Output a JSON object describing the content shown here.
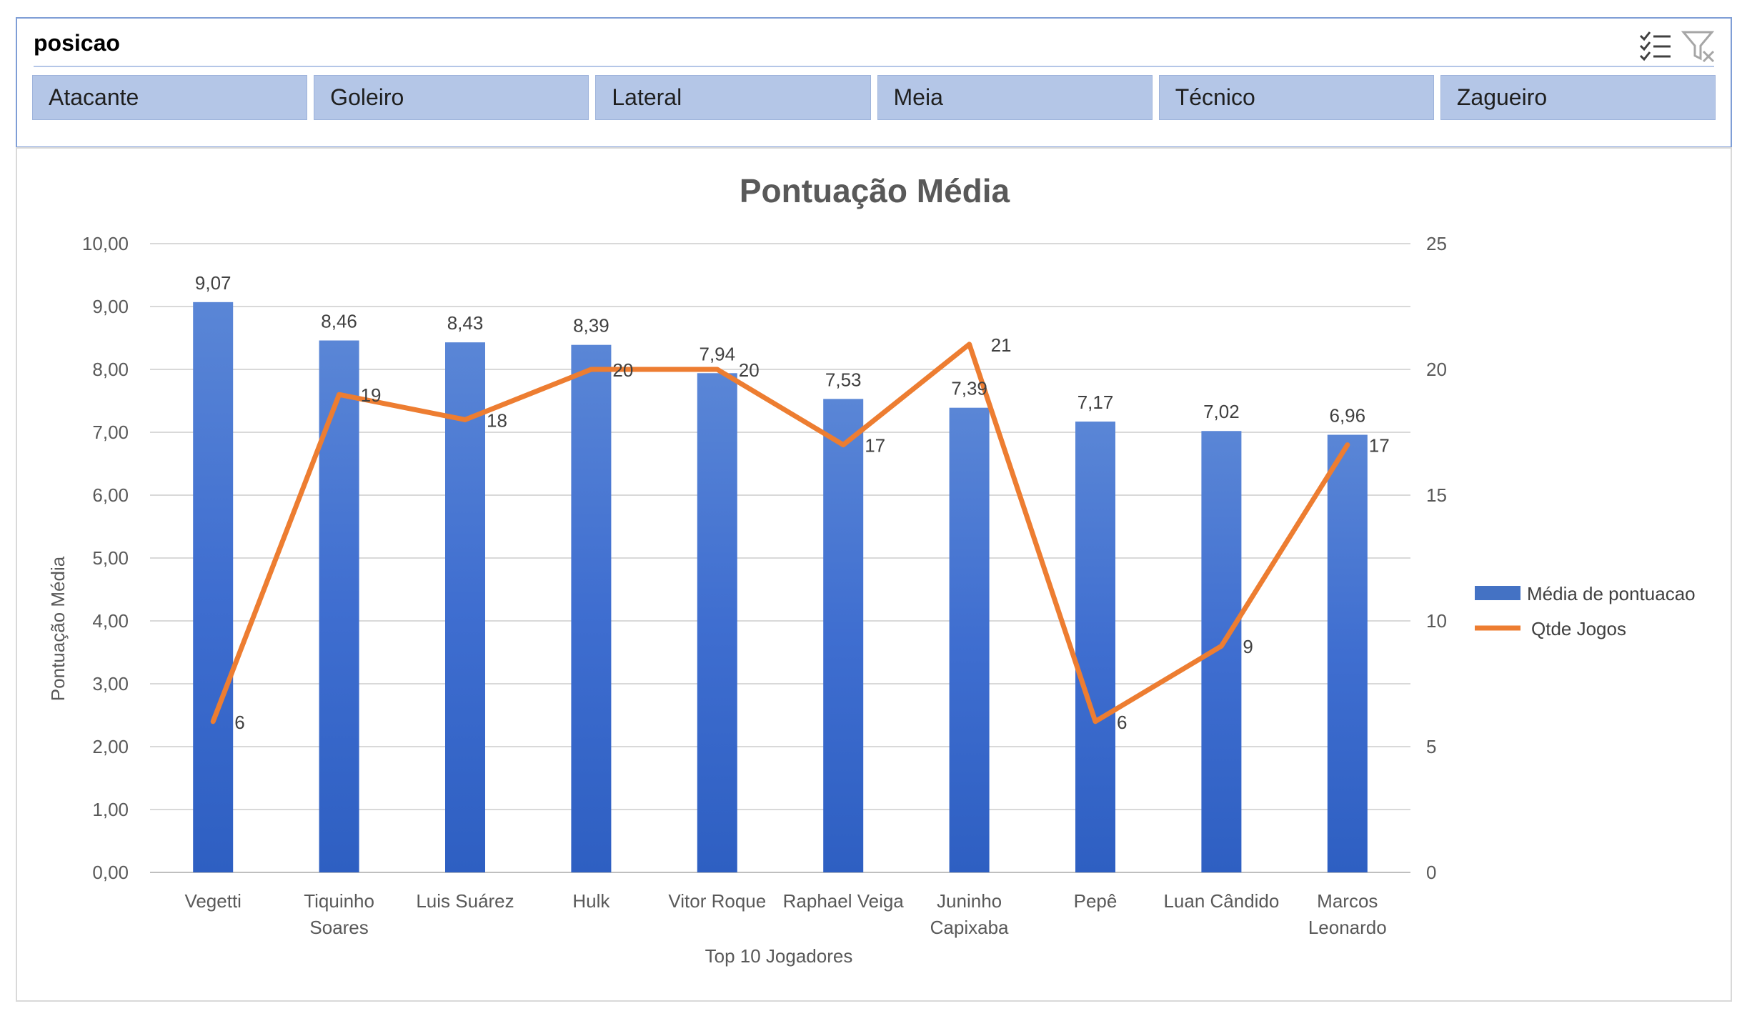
{
  "slicer": {
    "title": "posicao",
    "icons": [
      "multi-select-icon",
      "clear-filter-icon"
    ],
    "buttons": [
      "Atacante",
      "Goleiro",
      "Lateral",
      "Meia",
      "Técnico",
      "Zagueiro"
    ]
  },
  "colors": {
    "bar": "#4472c4",
    "line": "#ed7d31",
    "slicer_button": "#b4c6e7"
  },
  "chart_data": {
    "type": "bar",
    "title": "Pontuação Média",
    "xlabel": "Top 10 Jogadores",
    "ylabel": "Pontuação Média",
    "ylim": [
      0,
      10
    ],
    "y2lim": [
      0,
      25
    ],
    "yticks": [
      "0,00",
      "1,00",
      "2,00",
      "3,00",
      "4,00",
      "5,00",
      "6,00",
      "7,00",
      "8,00",
      "9,00",
      "10,00"
    ],
    "y2ticks": [
      "0",
      "5",
      "10",
      "15",
      "20",
      "25"
    ],
    "categories": [
      [
        "Vegetti"
      ],
      [
        "Tiquinho",
        "Soares"
      ],
      [
        "Luis Suárez"
      ],
      [
        "Hulk"
      ],
      [
        "Vitor Roque"
      ],
      [
        "Raphael Veiga"
      ],
      [
        "Juninho",
        "Capixaba"
      ],
      [
        "Pepê"
      ],
      [
        "Luan Cândido"
      ],
      [
        "Marcos",
        "Leonardo"
      ]
    ],
    "series": [
      {
        "name": "Média de pontuacao",
        "type": "bar",
        "axis": "primary",
        "values": [
          9.07,
          8.46,
          8.43,
          8.39,
          7.94,
          7.53,
          7.39,
          7.17,
          7.02,
          6.96
        ],
        "labels": [
          "9,07",
          "8,46",
          "8,43",
          "8,39",
          "7,94",
          "7,53",
          "7,39",
          "7,17",
          "7,02",
          "6,96"
        ]
      },
      {
        "name": "Qtde Jogos",
        "type": "line",
        "axis": "secondary",
        "values": [
          6,
          19,
          18,
          20,
          20,
          17,
          21,
          6,
          9,
          17
        ],
        "labels": [
          "6",
          "19",
          "18",
          "20",
          "20",
          "17",
          "21",
          "6",
          "9",
          "17"
        ]
      }
    ],
    "grid": true,
    "legend": "right"
  }
}
